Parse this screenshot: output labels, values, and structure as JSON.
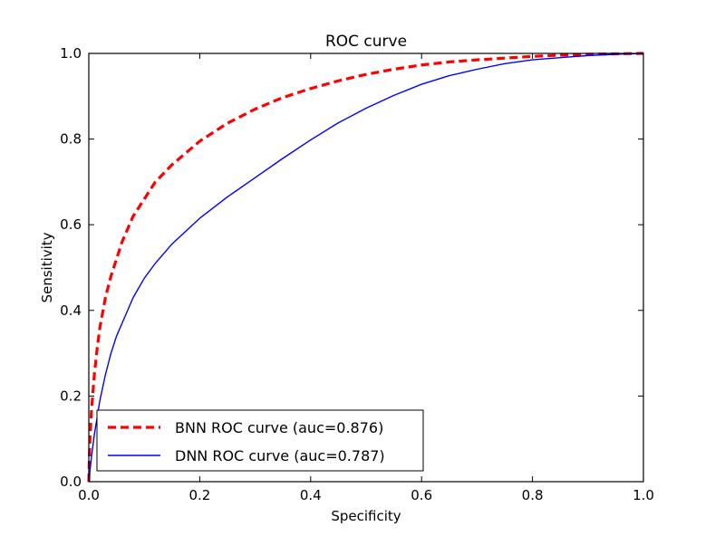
{
  "chart_data": {
    "type": "line",
    "title": "ROC curve",
    "xlabel": "Specificity",
    "ylabel": "Sensitivity",
    "xlim": [
      0.0,
      1.0
    ],
    "ylim": [
      0.0,
      1.0
    ],
    "grid": false,
    "legend_position": "lower-left",
    "xticks": [
      "0.0",
      "0.2",
      "0.4",
      "0.6",
      "0.8",
      "1.0"
    ],
    "yticks": [
      "0.0",
      "0.2",
      "0.4",
      "0.6",
      "0.8",
      "1.0"
    ],
    "series": [
      {
        "name": "BNN ROC curve (auc=0.876)",
        "color": "#ff0000",
        "line_style": "dashed",
        "x": [
          0.0,
          0.002,
          0.005,
          0.01,
          0.015,
          0.02,
          0.03,
          0.04,
          0.05,
          0.06,
          0.08,
          0.1,
          0.12,
          0.15,
          0.2,
          0.25,
          0.3,
          0.35,
          0.4,
          0.45,
          0.5,
          0.55,
          0.6,
          0.65,
          0.7,
          0.75,
          0.8,
          0.85,
          0.9,
          0.95,
          1.0
        ],
        "y": [
          0.0,
          0.1,
          0.17,
          0.25,
          0.31,
          0.36,
          0.43,
          0.48,
          0.52,
          0.56,
          0.62,
          0.66,
          0.7,
          0.74,
          0.795,
          0.837,
          0.87,
          0.897,
          0.918,
          0.936,
          0.951,
          0.963,
          0.973,
          0.98,
          0.985,
          0.989,
          0.993,
          0.996,
          0.998,
          0.999,
          1.0
        ]
      },
      {
        "name": "DNN ROC curve (auc=0.787)",
        "color": "#0000ff",
        "line_style": "solid",
        "x": [
          0.0,
          0.005,
          0.01,
          0.02,
          0.03,
          0.04,
          0.05,
          0.06,
          0.08,
          0.1,
          0.12,
          0.15,
          0.2,
          0.25,
          0.3,
          0.35,
          0.4,
          0.45,
          0.5,
          0.55,
          0.6,
          0.65,
          0.7,
          0.75,
          0.8,
          0.85,
          0.9,
          0.95,
          1.0
        ],
        "y": [
          0.0,
          0.06,
          0.11,
          0.19,
          0.25,
          0.3,
          0.34,
          0.37,
          0.43,
          0.475,
          0.51,
          0.555,
          0.615,
          0.665,
          0.71,
          0.755,
          0.798,
          0.838,
          0.872,
          0.902,
          0.928,
          0.948,
          0.963,
          0.976,
          0.985,
          0.99,
          0.995,
          0.998,
          1.0
        ]
      }
    ]
  }
}
